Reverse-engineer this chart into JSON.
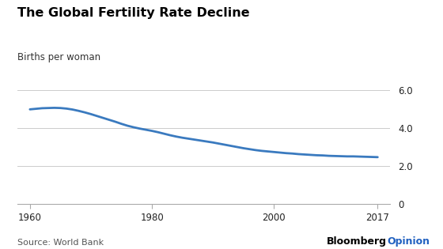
{
  "title": "The Global Fertility Rate Decline",
  "subtitle": "Births per woman",
  "source": "Source: World Bank",
  "branding_black": "Bloomberg",
  "branding_blue": "Opinion",
  "x_ticks": [
    1960,
    1980,
    2000,
    2017
  ],
  "y_ticks": [
    0,
    2.0,
    4.0,
    6.0
  ],
  "y_tick_labels": [
    "0",
    "2.0",
    "4.0",
    "6.0"
  ],
  "ylim": [
    0,
    6.8
  ],
  "xlim": [
    1958,
    2019
  ],
  "line_color": "#3a7abf",
  "line_width": 2.0,
  "background_color": "#ffffff",
  "data_x": [
    1960,
    1961,
    1962,
    1963,
    1964,
    1965,
    1966,
    1967,
    1968,
    1969,
    1970,
    1971,
    1972,
    1973,
    1974,
    1975,
    1976,
    1977,
    1978,
    1979,
    1980,
    1981,
    1982,
    1983,
    1984,
    1985,
    1986,
    1987,
    1988,
    1989,
    1990,
    1991,
    1992,
    1993,
    1994,
    1995,
    1996,
    1997,
    1998,
    1999,
    2000,
    2001,
    2002,
    2003,
    2004,
    2005,
    2006,
    2007,
    2008,
    2009,
    2010,
    2011,
    2012,
    2013,
    2014,
    2015,
    2016,
    2017
  ],
  "data_y": [
    4.98,
    5.01,
    5.04,
    5.05,
    5.06,
    5.05,
    5.02,
    4.97,
    4.9,
    4.82,
    4.73,
    4.63,
    4.53,
    4.43,
    4.33,
    4.22,
    4.12,
    4.04,
    3.97,
    3.91,
    3.85,
    3.78,
    3.7,
    3.62,
    3.55,
    3.49,
    3.44,
    3.39,
    3.34,
    3.29,
    3.24,
    3.18,
    3.12,
    3.06,
    3.0,
    2.94,
    2.89,
    2.84,
    2.8,
    2.77,
    2.74,
    2.71,
    2.68,
    2.66,
    2.63,
    2.61,
    2.59,
    2.57,
    2.56,
    2.54,
    2.53,
    2.52,
    2.51,
    2.51,
    2.5,
    2.49,
    2.48,
    2.47
  ],
  "title_fontsize": 11.5,
  "subtitle_fontsize": 8.5,
  "tick_fontsize": 8.5,
  "source_fontsize": 8,
  "brand_fontsize": 9,
  "grid_color": "#cccccc",
  "spine_color": "#aaaaaa",
  "tick_color": "#aaaaaa",
  "text_color": "#222222",
  "source_color": "#555555"
}
